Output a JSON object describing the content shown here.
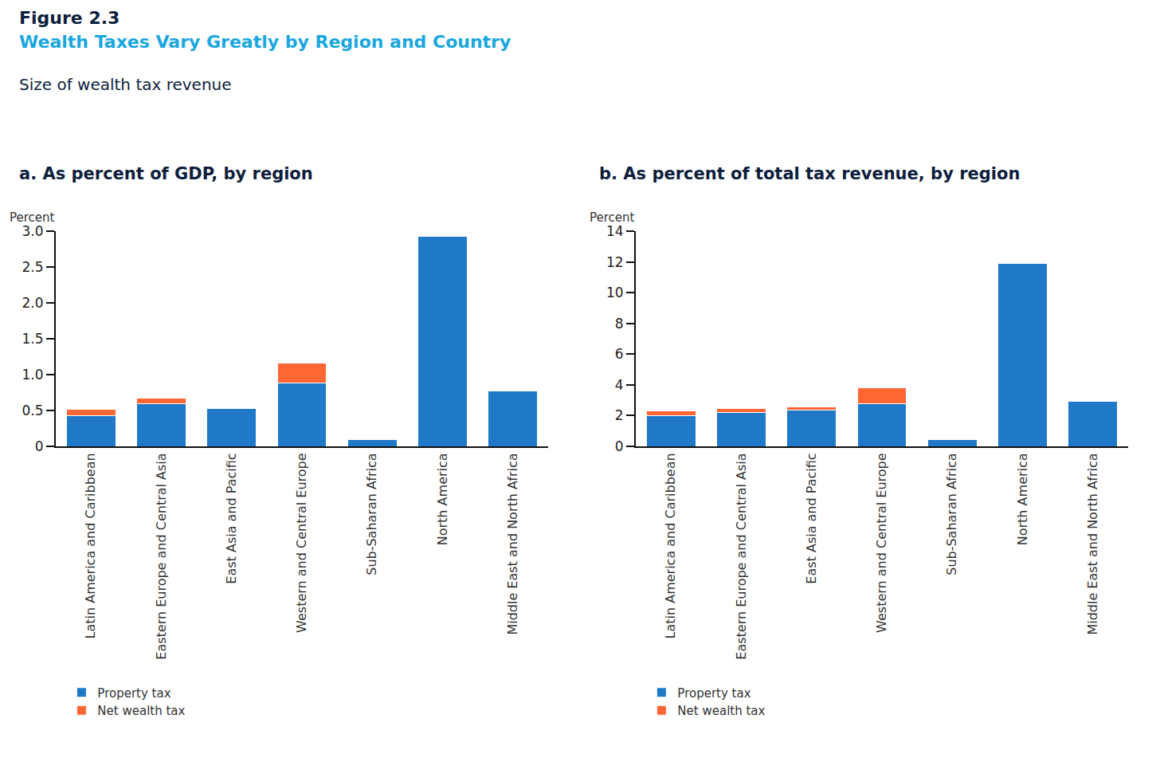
{
  "header": {
    "figure_label": "Figure 2.3",
    "title": "Wealth Taxes Vary Greatly by Region and Country",
    "subtitle": "Size of wealth tax revenue"
  },
  "chart_data": [
    {
      "type": "bar",
      "title": "a. As percent of GDP, by region",
      "y_label": "Percent",
      "categories": [
        "Latin America and Caribbean",
        "Eastern Europe and Central Asia",
        "East Asia and Pacific",
        "Western and Central Europe",
        "Sub-Saharan Africa",
        "North America",
        "Middle East and North Africa"
      ],
      "series": [
        {
          "name": "Property tax",
          "color": "#1f78c8",
          "values": [
            0.43,
            0.59,
            0.53,
            0.88,
            0.1,
            2.93,
            0.77
          ]
        },
        {
          "name": "Net wealth tax",
          "color": "#ff6633",
          "values": [
            0.09,
            0.08,
            0,
            0.28,
            0,
            0,
            0
          ]
        }
      ],
      "stacked": true,
      "ylim": [
        0,
        3
      ],
      "yticks": [
        0,
        0.5,
        {
          "value": 1,
          "label": "1.0"
        },
        1.5,
        {
          "value": 2,
          "label": "2.0"
        },
        2.5,
        {
          "value": 3,
          "label": "3.0"
        }
      ],
      "grid": false,
      "legend": "bottom"
    },
    {
      "type": "bar",
      "title": "b. As percent of total tax revenue, by region",
      "y_label": "Percent",
      "categories": [
        "Latin America and Caribbean",
        "Eastern Europe and Central Asia",
        "East Asia and Pacific",
        "Western and Central Europe",
        "Sub-Saharan Africa",
        "North America",
        "Middle East and North Africa"
      ],
      "series": [
        {
          "name": "Property tax",
          "color": "#1f78c8",
          "values": [
            2.0,
            2.2,
            2.35,
            2.8,
            0.45,
            11.9,
            2.95
          ]
        },
        {
          "name": "Net wealth tax",
          "color": "#ff6633",
          "values": [
            0.3,
            0.25,
            0.2,
            1.0,
            0,
            0,
            0
          ]
        }
      ],
      "stacked": true,
      "ylim": [
        0,
        14
      ],
      "yticks": [
        0,
        2,
        4,
        6,
        8,
        10,
        12,
        14
      ],
      "grid": false,
      "legend": "bottom"
    }
  ]
}
